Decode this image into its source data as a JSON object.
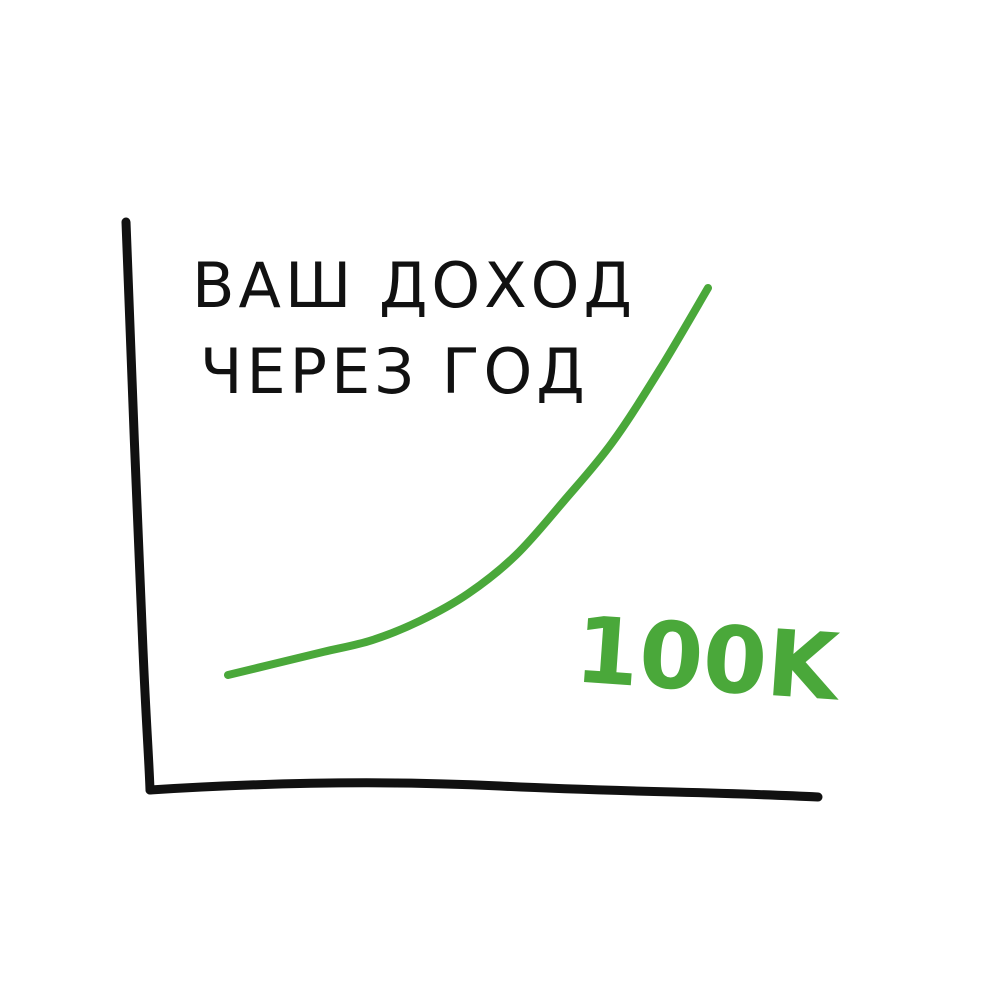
{
  "chart_data": {
    "type": "line",
    "title": [
      "ВАШ ДОХОД",
      "ЧЕРЕЗ ГОД"
    ],
    "xlabel": "",
    "ylabel": "",
    "annotation": "100K",
    "grid": false,
    "legend": "none",
    "xlim": [
      0,
      1
    ],
    "ylim": [
      0,
      1
    ],
    "series": [
      {
        "x": [
          0.0,
          0.1,
          0.2,
          0.3,
          0.4,
          0.5,
          0.6,
          0.7,
          0.8,
          0.9,
          1.0
        ],
        "y": [
          0.0,
          0.03,
          0.06,
          0.09,
          0.14,
          0.21,
          0.31,
          0.45,
          0.6,
          0.79,
          1.0
        ],
        "color": "#4aa83a"
      }
    ]
  },
  "colors": {
    "axis": "#111111",
    "text": "#111111",
    "curve": "#4aa83a",
    "annotation": "#4aa83a"
  }
}
